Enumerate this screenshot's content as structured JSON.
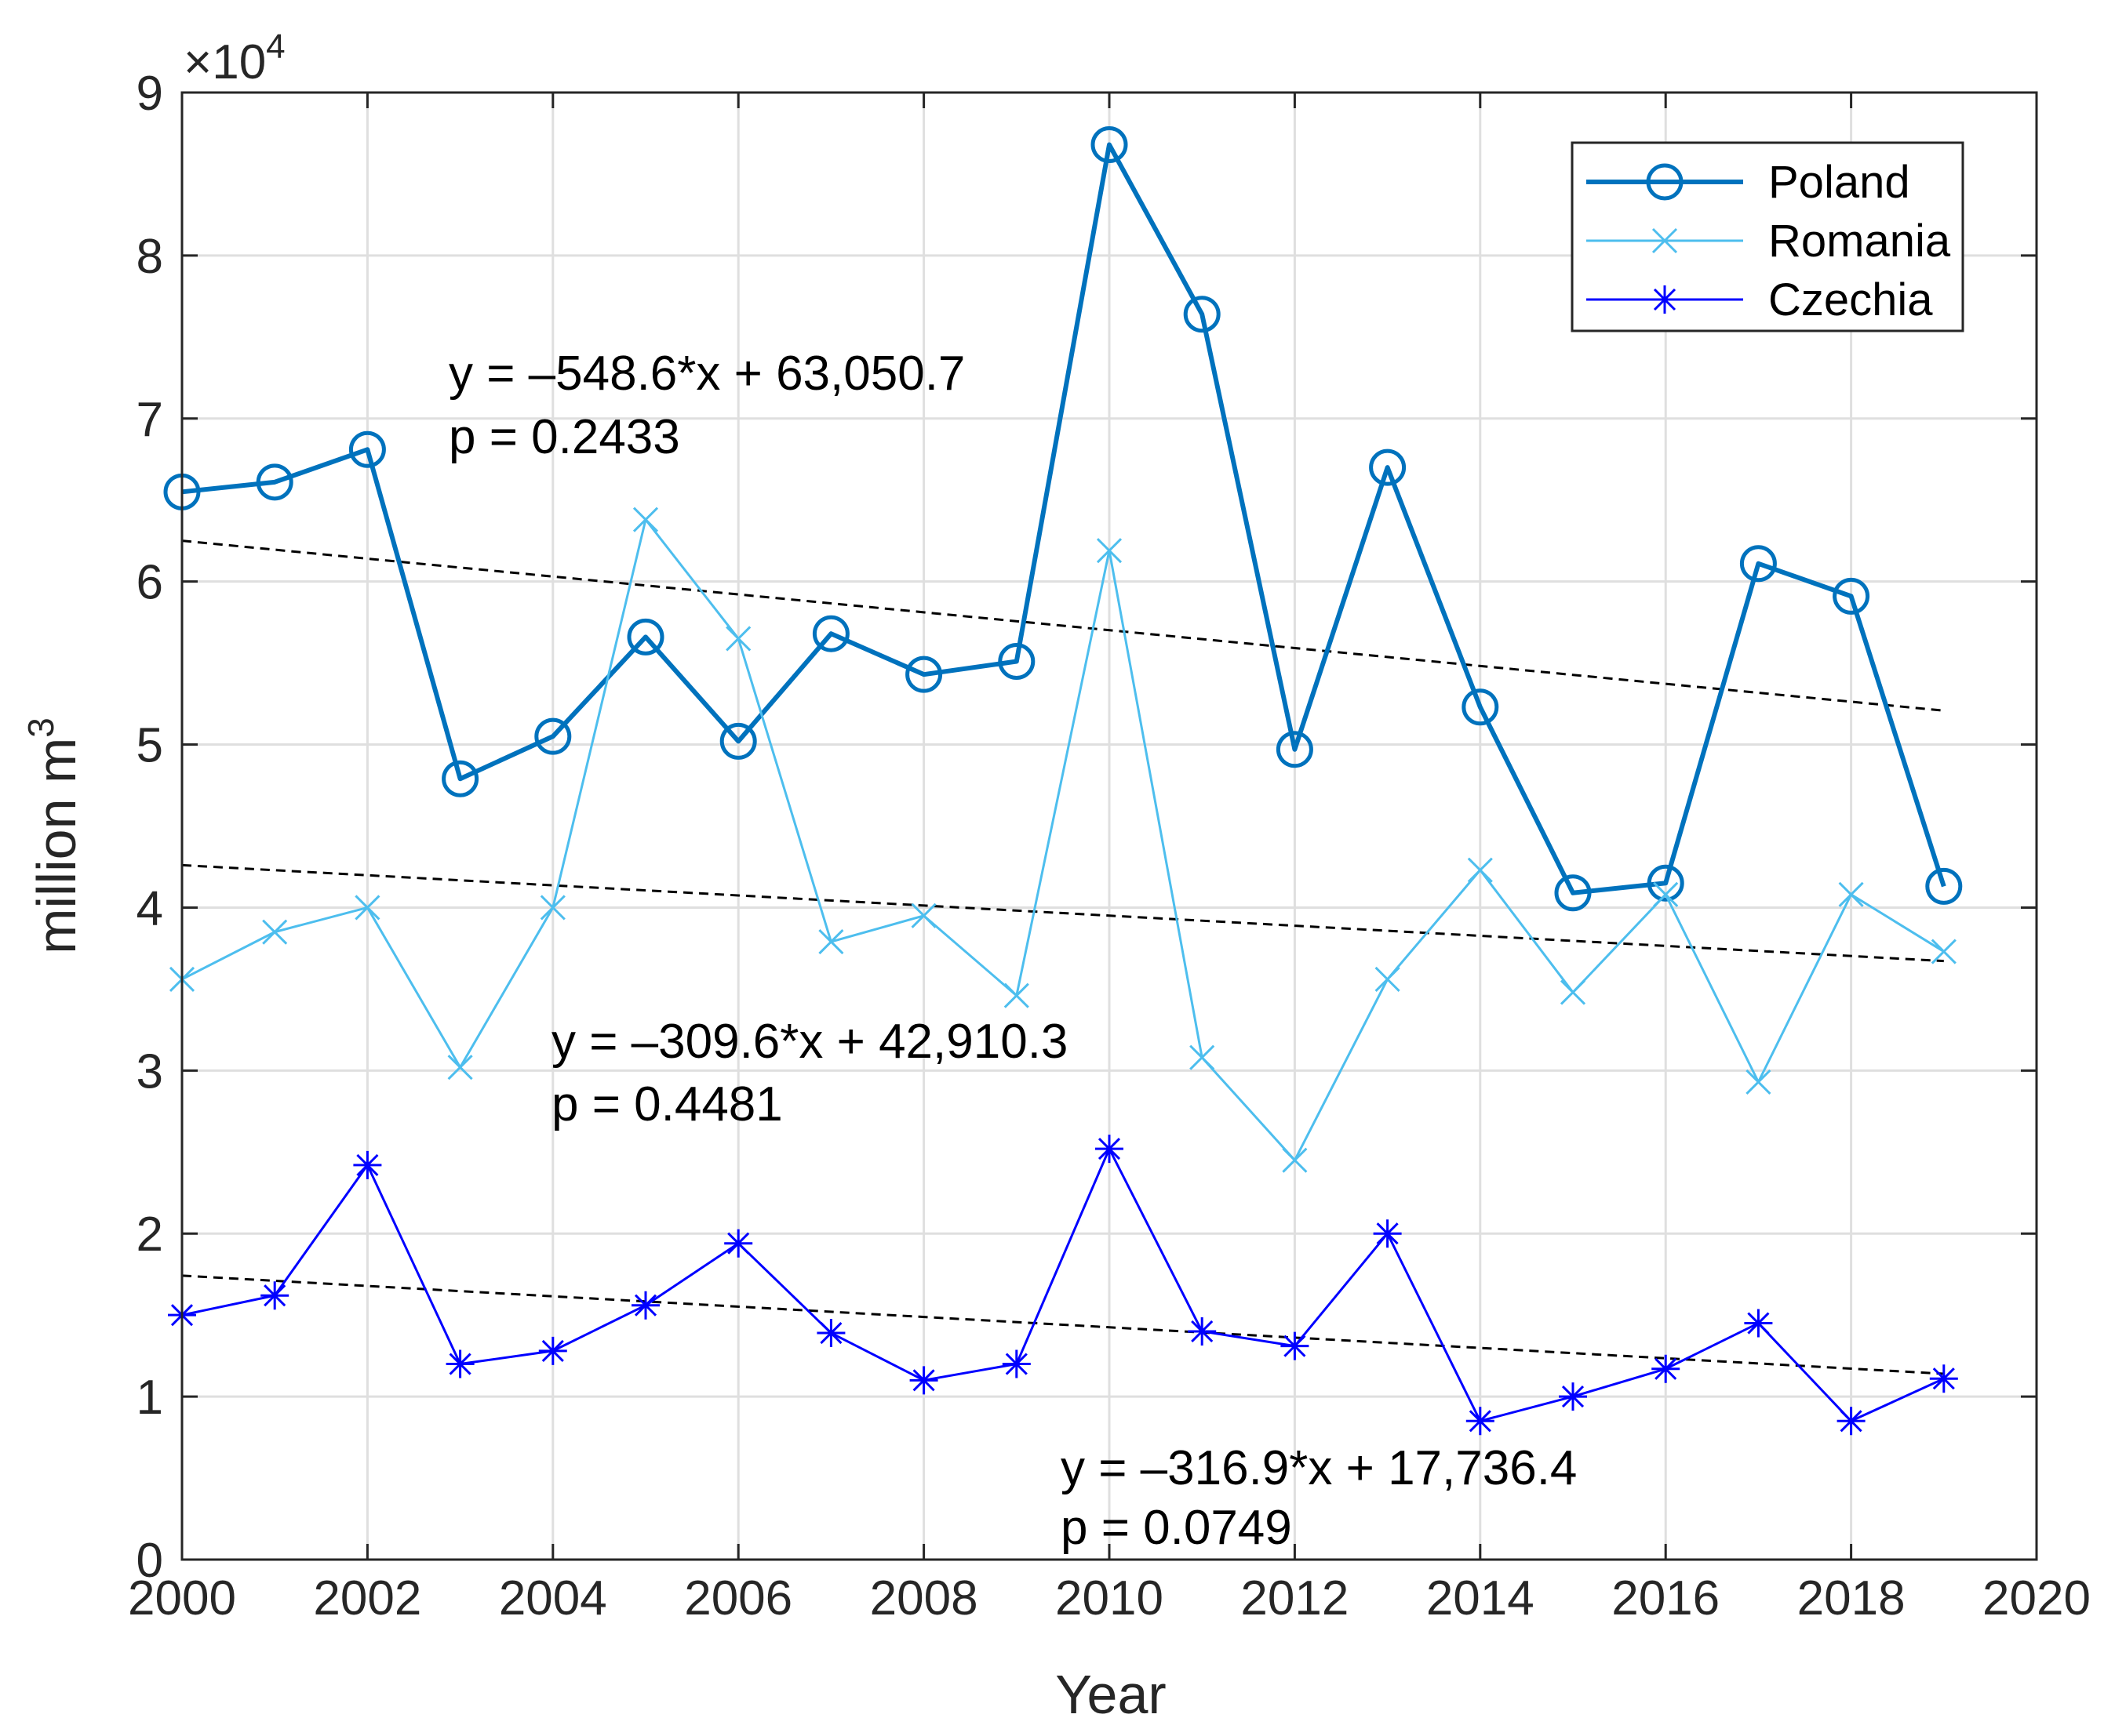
{
  "chart_data": {
    "type": "line",
    "title": "",
    "xlabel": "Year",
    "ylabel": "million m",
    "ylabel_superscript": "3",
    "multiplier_base": "×10",
    "multiplier_exponent": "4",
    "xlim": [
      2000,
      2020
    ],
    "ylim": [
      0,
      90000
    ],
    "xticks": [
      "2000",
      "2002",
      "2004",
      "2006",
      "2008",
      "2010",
      "2012",
      "2014",
      "2016",
      "2018",
      "2020"
    ],
    "yticks": [
      "0",
      "1",
      "2",
      "3",
      "4",
      "5",
      "6",
      "7",
      "8",
      "9"
    ],
    "grid": true,
    "legend_position": "top-right",
    "x": [
      2000,
      2001,
      2002,
      2003,
      2004,
      2005,
      2006,
      2007,
      2008,
      2009,
      2010,
      2011,
      2012,
      2013,
      2014,
      2015,
      2016,
      2017,
      2018,
      2019
    ],
    "series": [
      {
        "name": "Poland",
        "marker": "circle",
        "color": "#0072BD",
        "values": [
          65500,
          66100,
          68100,
          47900,
          50500,
          56600,
          50200,
          56800,
          54300,
          55100,
          86800,
          76400,
          49700,
          67000,
          52300,
          40900,
          41500,
          61100,
          59100,
          41300
        ]
      },
      {
        "name": "Romania",
        "marker": "x",
        "color": "#4DBEEE",
        "values": [
          35600,
          38500,
          40000,
          30200,
          40000,
          63800,
          56500,
          37900,
          39500,
          34600,
          61900,
          30800,
          24500,
          35600,
          42300,
          34800,
          40800,
          29300,
          40800,
          37300
        ]
      },
      {
        "name": "Czechia",
        "marker": "asterisk",
        "color": "#0000FF",
        "values": [
          15000,
          16200,
          24200,
          12000,
          12800,
          15600,
          19400,
          13900,
          11000,
          12000,
          25200,
          14000,
          13100,
          20000,
          8500,
          10000,
          11700,
          14500,
          8500,
          11100
        ]
      }
    ],
    "trendlines": [
      {
        "series": "Poland",
        "equation": "y = –548.6*x + 63,050.7",
        "p_value": "p = 0.2433",
        "start": [
          2000,
          62502
        ],
        "end": [
          2019,
          52079
        ]
      },
      {
        "series": "Romania",
        "equation": "y = –309.6*x + 42,910.3",
        "p_value": "p = 0.4481",
        "start": [
          2000,
          42601
        ],
        "end": [
          2019,
          36718
        ]
      },
      {
        "series": "Czechia",
        "equation": "y = –316.9*x + 17,736.4",
        "p_value": "p = 0.0749",
        "start": [
          2000,
          17420
        ],
        "end": [
          2019,
          11398
        ]
      }
    ]
  }
}
